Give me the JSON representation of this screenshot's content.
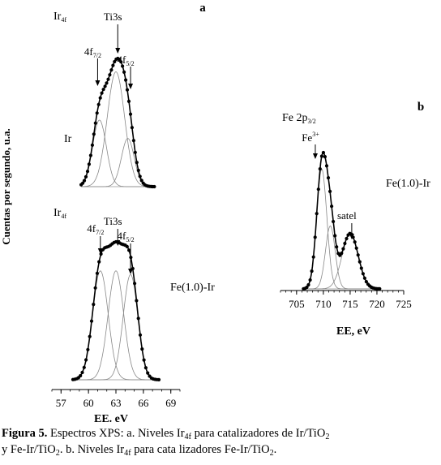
{
  "figure": {
    "ylabel": "Cuentas por segundo, u.a.",
    "panel_a": {
      "letter": "a",
      "xlabel": "EE. eV",
      "xticks": [
        57,
        60,
        63,
        66,
        69
      ],
      "xlim": [
        56,
        70
      ],
      "top": {
        "series_label": "Ir",
        "header": "Ir",
        "header_sub": "4f",
        "annotations": [
          {
            "text": "Ti3s",
            "x": 63.2
          },
          {
            "text": "4f",
            "sub": "7/2",
            "x": 61.0
          },
          {
            "text": "4f",
            "sub": "5/2",
            "x": 64.6
          }
        ]
      },
      "bottom": {
        "series_label": "Fe(1.0)-Ir",
        "header": "Ir",
        "header_sub": "4f",
        "annotations": [
          {
            "text": "Ti3s",
            "x": 63.2
          },
          {
            "text": "4f",
            "sub": "7/2",
            "x": 61.3
          },
          {
            "text": "4f",
            "sub": "5/2",
            "x": 64.6
          }
        ]
      }
    },
    "panel_b": {
      "letter": "b",
      "xlabel": "EE, eV",
      "xticks": [
        705,
        710,
        715,
        720,
        725
      ],
      "xlim": [
        702,
        725
      ],
      "header": "Fe 2p",
      "header_sub": "3/2",
      "series_label": "Fe(1.0)-Ir",
      "annotations": [
        {
          "text": "Fe",
          "sup": "3+",
          "x": 708.5
        },
        {
          "text": "satel",
          "x": 715.3
        }
      ]
    }
  },
  "chart_data": [
    {
      "type": "line",
      "panel": "a-top",
      "series": [
        {
          "name": "Ir",
          "peaks": [
            {
              "center": 61.2,
              "height": 0.58,
              "width": 0.75
            },
            {
              "center": 63.0,
              "height": 1.0,
              "width": 0.95
            },
            {
              "center": 64.3,
              "height": 0.42,
              "width": 0.7
            }
          ]
        }
      ]
    },
    {
      "type": "line",
      "panel": "a-bottom",
      "series": [
        {
          "name": "Fe(1.0)-Ir",
          "peaks": [
            {
              "center": 61.3,
              "height": 0.88,
              "width": 0.85
            },
            {
              "center": 63.0,
              "height": 0.88,
              "width": 0.85
            },
            {
              "center": 64.6,
              "height": 0.85,
              "width": 0.8
            }
          ]
        }
      ]
    },
    {
      "type": "line",
      "panel": "b",
      "series": [
        {
          "name": "Fe(1.0)-Ir",
          "peaks": [
            {
              "center": 709.7,
              "height": 0.95,
              "width": 0.95
            },
            {
              "center": 711.3,
              "height": 0.5,
              "width": 0.9
            },
            {
              "center": 715.0,
              "height": 0.44,
              "width": 1.5
            }
          ]
        }
      ]
    }
  ],
  "caption": {
    "label": "Figura 5.",
    "line1_pre": " Espectros XPS: a. Niveles Ir",
    "line1_sub1": "4f",
    "line1_mid": " para catalizadores de Ir/TiO",
    "line1_sub2": "2",
    "line2_pre": "y Fe-Ir/TiO",
    "line2_sub1": "2",
    "line2_mid": ". b. Niveles Ir",
    "line2_sub2": "4f",
    "line2_post": " para cata lizadores  Fe-Ir/TiO",
    "line2_sub3": "2",
    "line2_end": "."
  }
}
